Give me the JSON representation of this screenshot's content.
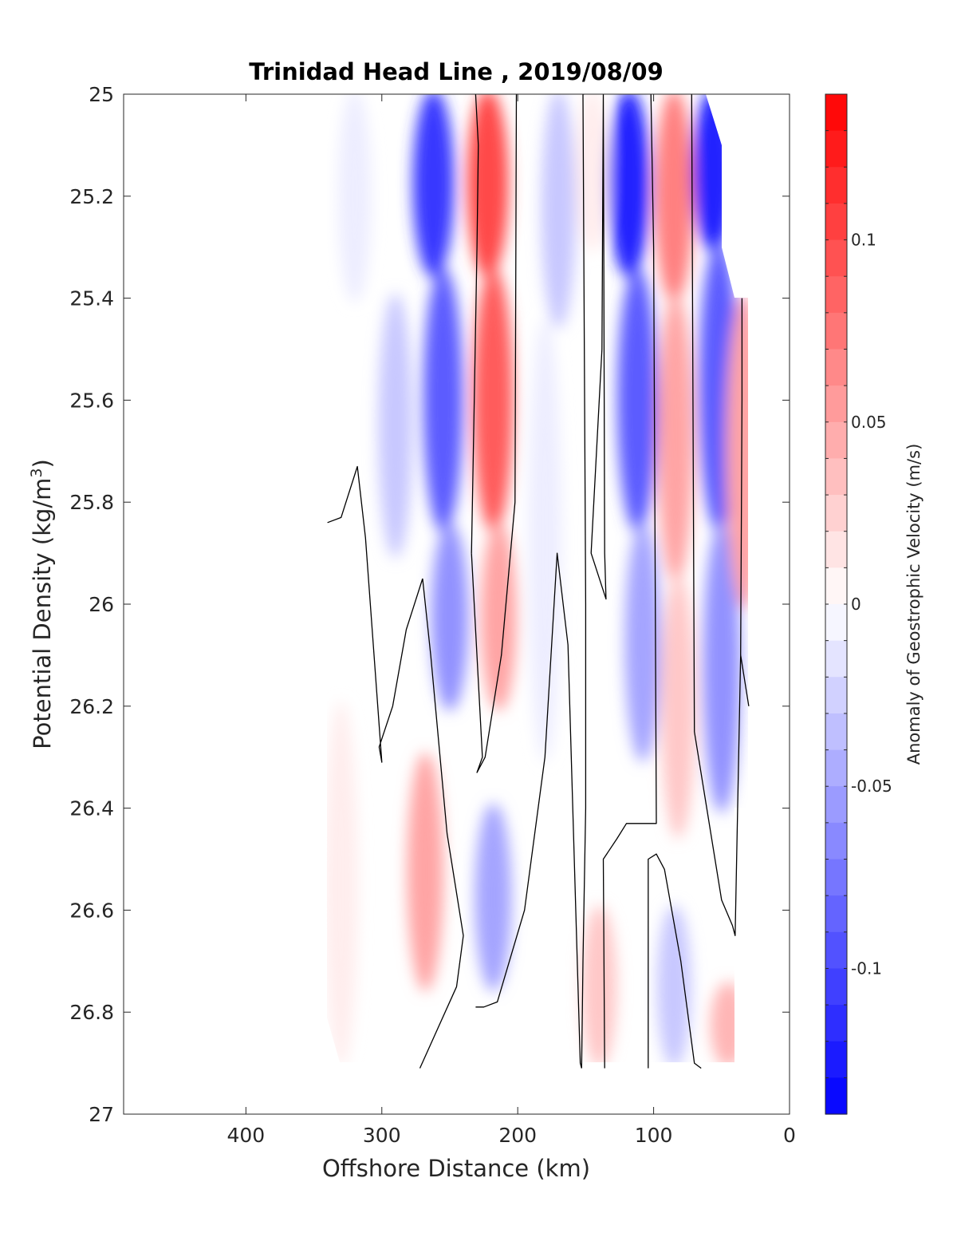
{
  "chart_data": {
    "type": "contour",
    "title": "Trinidad Head Line , 2019/08/09",
    "xlabel": "Offshore Distance (km)",
    "ylabel": "Potential Density (kg/m³)",
    "ylabel_parts": {
      "main": "Potential Density (kg/m",
      "sup": "3",
      "tail": ")"
    },
    "xlim": [
      490,
      0
    ],
    "x_reversed": true,
    "ylim": [
      25,
      27
    ],
    "y_reversed": true,
    "x_ticks": [
      400,
      300,
      200,
      100,
      0
    ],
    "x_tick_labels": [
      "400",
      "300",
      "200",
      "100",
      "0"
    ],
    "y_ticks": [
      25,
      25.2,
      25.4,
      25.6,
      25.8,
      26,
      26.2,
      26.4,
      26.6,
      26.8,
      27
    ],
    "y_tick_labels": [
      "25",
      "25.2",
      "25.4",
      "25.6",
      "25.8",
      "26",
      "26.2",
      "26.4",
      "26.6",
      "26.8",
      "27"
    ],
    "colorbar": {
      "label": "Anomaly of Geostrophic Velocity (m/s)",
      "range": [
        -0.14,
        0.14
      ],
      "levels": 28,
      "ticks": [
        0.1,
        0.05,
        0,
        -0.05,
        -0.1
      ],
      "tick_labels": [
        "0.1",
        "0.05",
        "0",
        "-0.05",
        "-0.1"
      ],
      "negative_color": "#0000ff",
      "positive_color": "#ff0000"
    },
    "cores": [
      {
        "x": 320,
        "y0": 25.0,
        "y1": 25.4,
        "value": -0.015
      },
      {
        "x": 262,
        "y0": 25.0,
        "y1": 25.35,
        "value": -0.11
      },
      {
        "x": 255,
        "y0": 25.35,
        "y1": 25.85,
        "value": -0.085
      },
      {
        "x": 250,
        "y0": 25.85,
        "y1": 26.2,
        "value": -0.055
      },
      {
        "x": 290,
        "y0": 25.4,
        "y1": 25.9,
        "value": -0.025
      },
      {
        "x": 222,
        "y0": 25.0,
        "y1": 25.35,
        "value": 0.1
      },
      {
        "x": 218,
        "y0": 25.35,
        "y1": 25.85,
        "value": 0.085
      },
      {
        "x": 214,
        "y0": 25.85,
        "y1": 26.2,
        "value": 0.045
      },
      {
        "x": 170,
        "y0": 25.0,
        "y1": 25.45,
        "value": -0.03
      },
      {
        "x": 180,
        "y0": 25.45,
        "y1": 26.3,
        "value": -0.015
      },
      {
        "x": 145,
        "y0": 25.0,
        "y1": 25.3,
        "value": 0.015
      },
      {
        "x": 118,
        "y0": 25.0,
        "y1": 25.35,
        "value": -0.12
      },
      {
        "x": 112,
        "y0": 25.35,
        "y1": 25.85,
        "value": -0.085
      },
      {
        "x": 108,
        "y0": 25.85,
        "y1": 26.3,
        "value": -0.045
      },
      {
        "x": 85,
        "y0": 25.0,
        "y1": 25.4,
        "value": 0.07
      },
      {
        "x": 84,
        "y0": 25.4,
        "y1": 25.95,
        "value": 0.045
      },
      {
        "x": 82,
        "y0": 25.95,
        "y1": 26.45,
        "value": 0.025
      },
      {
        "x": 56,
        "y0": 25.0,
        "y1": 25.3,
        "value": -0.12
      },
      {
        "x": 52,
        "y0": 25.3,
        "y1": 25.85,
        "value": -0.09
      },
      {
        "x": 50,
        "y0": 25.85,
        "y1": 26.4,
        "value": -0.06
      },
      {
        "x": 33,
        "y0": 25.4,
        "y1": 26.0,
        "value": 0.05
      },
      {
        "x": 268,
        "y0": 26.3,
        "y1": 26.75,
        "value": 0.045
      },
      {
        "x": 330,
        "y0": 26.2,
        "y1": 26.9,
        "value": 0.015
      },
      {
        "x": 218,
        "y0": 26.4,
        "y1": 26.75,
        "value": -0.05
      },
      {
        "x": 140,
        "y0": 26.6,
        "y1": 26.9,
        "value": 0.03
      },
      {
        "x": 85,
        "y0": 26.6,
        "y1": 26.9,
        "value": -0.025
      },
      {
        "x": 45,
        "y0": 26.75,
        "y1": 26.9,
        "value": 0.04
      }
    ],
    "zero_contours": [
      {
        "x": [
          340,
          330,
          318,
          312,
          300,
          302,
          292,
          282,
          270
        ],
        "y": [
          25.84,
          25.83,
          25.73,
          25.87,
          26.31,
          26.28,
          26.2,
          26.05,
          25.95
        ]
      },
      {
        "x": [
          270,
          264,
          252,
          240,
          245,
          272
        ],
        "y": [
          25.95,
          26.1,
          26.45,
          26.65,
          26.75,
          26.91
        ]
      },
      {
        "x": [
          201,
          202,
          212,
          224,
          230,
          226,
          234
        ],
        "y": [
          25.0,
          25.8,
          26.1,
          26.3,
          26.33,
          26.3,
          25.9
        ]
      },
      {
        "x": [
          234,
          232,
          230,
          229,
          231
        ],
        "y": [
          25.9,
          25.6,
          25.3,
          25.1,
          25.0
        ]
      },
      {
        "x": [
          231,
          225,
          215,
          195,
          180,
          171,
          163,
          154,
          153
        ],
        "y": [
          26.79,
          26.79,
          26.78,
          26.6,
          26.3,
          25.9,
          26.08,
          26.9,
          26.91
        ]
      },
      {
        "x": [
          153,
          152,
          150,
          150
        ],
        "y": [
          26.91,
          26.7,
          26.4,
          26.0
        ]
      },
      {
        "x": [
          150,
          151,
          152,
          151
        ],
        "y": [
          26.0,
          25.5,
          25.0,
          25.0
        ]
      },
      {
        "x": [
          137,
          138,
          146,
          135,
          136,
          137
        ],
        "y": [
          25.0,
          25.5,
          25.9,
          25.99,
          25.9,
          25.0
        ]
      },
      {
        "x": [
          102,
          100,
          98,
          120,
          127,
          137,
          136
        ],
        "y": [
          25.0,
          25.3,
          26.43,
          26.43,
          26.46,
          26.5,
          26.91
        ]
      },
      {
        "x": [
          104,
          104,
          98,
          92,
          80,
          70,
          65
        ],
        "y": [
          26.91,
          26.5,
          26.49,
          26.52,
          26.7,
          26.9,
          26.91
        ]
      },
      {
        "x": [
          72,
          70,
          50,
          42,
          40,
          36,
          30
        ],
        "y": [
          25.0,
          26.25,
          26.58,
          26.63,
          26.65,
          26.1,
          26.2
        ]
      },
      {
        "x": [
          36,
          35,
          35
        ],
        "y": [
          26.1,
          25.6,
          25.4
        ]
      }
    ]
  }
}
